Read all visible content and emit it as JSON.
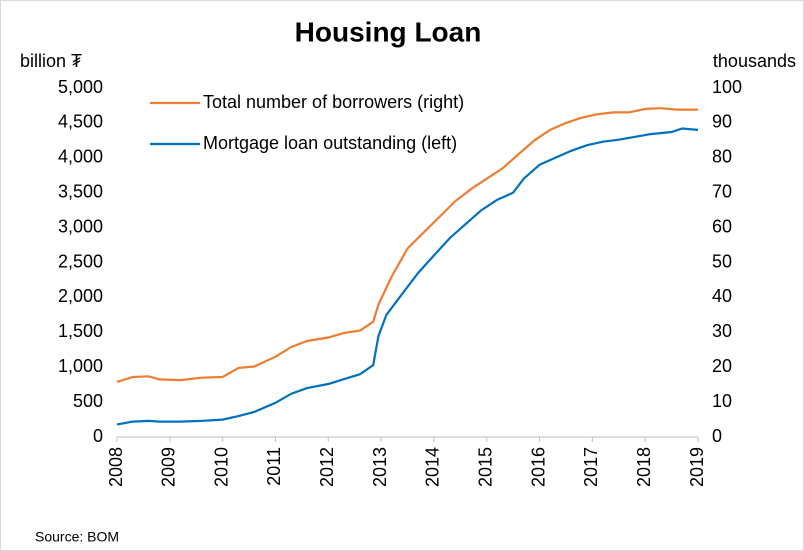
{
  "chart_data": {
    "type": "line",
    "title": "Housing Loan",
    "y_label": "billion ₮",
    "y2_label": "thousands",
    "source": "Source: BOM",
    "xlim": [
      2008,
      2019
    ],
    "xticks": [
      2008,
      2009,
      2010,
      2011,
      2012,
      2013,
      2014,
      2015,
      2016,
      2017,
      2018,
      2019
    ],
    "ylim": [
      0,
      5000
    ],
    "yticks": [
      0,
      {
        "value": 500,
        "label": "500"
      },
      {
        "value": 1000,
        "label": "1,000"
      },
      {
        "value": 1500,
        "label": "1,500"
      },
      {
        "value": 2000,
        "label": "2,000"
      },
      {
        "value": 2500,
        "label": "2,500"
      },
      {
        "value": 3000,
        "label": "3,000"
      },
      {
        "value": 3500,
        "label": "3,500"
      },
      {
        "value": 4000,
        "label": "4,000"
      },
      {
        "value": 4500,
        "label": "4,500"
      },
      {
        "value": 5000,
        "label": "5,000"
      }
    ],
    "y2lim": [
      0,
      100
    ],
    "y2ticks": [
      0,
      10,
      20,
      30,
      40,
      50,
      60,
      70,
      80,
      90,
      100
    ],
    "legend": "top-left",
    "series": [
      {
        "name": "Total number of borrowers (right)",
        "color": "#ed7d31",
        "axis": "y2",
        "x": [
          2008.0,
          2008.3,
          2008.6,
          2008.8,
          2009.2,
          2009.6,
          2010.0,
          2010.3,
          2010.6,
          2011.0,
          2011.3,
          2011.6,
          2012.0,
          2012.3,
          2012.6,
          2012.85,
          2012.95,
          2013.2,
          2013.5,
          2013.8,
          2014.1,
          2014.4,
          2014.7,
          2015.0,
          2015.3,
          2015.6,
          2015.9,
          2016.2,
          2016.5,
          2016.8,
          2017.1,
          2017.4,
          2017.7,
          2018.0,
          2018.3,
          2018.6,
          2019.0
        ],
        "values": [
          15.8,
          17.2,
          17.4,
          16.5,
          16.3,
          17,
          17.2,
          19.8,
          20.2,
          23,
          25.8,
          27.5,
          28.5,
          29.8,
          30.5,
          33,
          38,
          46,
          54,
          58.5,
          63,
          67.5,
          71,
          74,
          77,
          81,
          85,
          88,
          90,
          91.5,
          92.5,
          93,
          93,
          94,
          94.2,
          93.8,
          93.8
        ]
      },
      {
        "name": "Mortgage loan outstanding (left)",
        "color": "#0070c0",
        "axis": "y",
        "x": [
          2008.0,
          2008.3,
          2008.6,
          2008.8,
          2009.2,
          2009.6,
          2010.0,
          2010.3,
          2010.6,
          2011.0,
          2011.3,
          2011.6,
          2012.0,
          2012.3,
          2012.6,
          2012.85,
          2012.95,
          2013.1,
          2013.4,
          2013.7,
          2014.0,
          2014.3,
          2014.6,
          2014.9,
          2015.2,
          2015.5,
          2015.7,
          2016.0,
          2016.3,
          2016.6,
          2016.9,
          2017.2,
          2017.5,
          2017.8,
          2018.1,
          2018.5,
          2018.7,
          2019.0
        ],
        "values": [
          180,
          220,
          230,
          220,
          220,
          230,
          250,
          300,
          360,
          490,
          620,
          700,
          760,
          830,
          900,
          1030,
          1450,
          1750,
          2050,
          2350,
          2600,
          2850,
          3050,
          3250,
          3400,
          3500,
          3700,
          3900,
          4000,
          4100,
          4180,
          4230,
          4260,
          4300,
          4340,
          4370,
          4420,
          4400
        ]
      }
    ]
  }
}
